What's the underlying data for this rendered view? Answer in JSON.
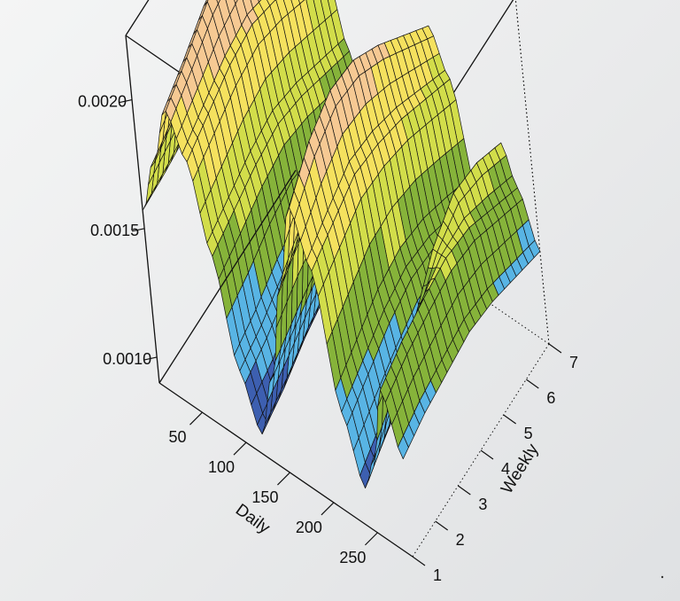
{
  "chart_data": {
    "type": "surface",
    "title": "",
    "xlabel": "Daily",
    "ylabel": "Weekly",
    "zlabel": "",
    "xlim": [
      1,
      290
    ],
    "ylim": [
      1,
      7
    ],
    "zlim": [
      0.0009,
      0.00225
    ],
    "x_ticks": [
      "50",
      "100",
      "150",
      "200",
      "250"
    ],
    "y_ticks": [
      "1",
      "2",
      "3",
      "4",
      "5",
      "6",
      "7"
    ],
    "z_ticks": [
      "0.0010",
      "0.0015",
      "0.0020"
    ],
    "grid": false,
    "surface_rows": [
      {
        "daily": 1,
        "values": [
          0.00157,
          0.00158,
          0.0016,
          0.00162,
          0.00163,
          0.00161,
          0.00158
        ]
      },
      {
        "daily": 20,
        "values": [
          0.0018,
          0.00185,
          0.00192,
          0.00198,
          0.00201,
          0.00197,
          0.0019
        ]
      },
      {
        "daily": 40,
        "values": [
          0.00205,
          0.00212,
          0.0022,
          0.00224,
          0.0022,
          0.00212,
          0.00205
        ]
      },
      {
        "daily": 60,
        "values": [
          0.0019,
          0.00195,
          0.002,
          0.00202,
          0.00198,
          0.00192,
          0.00186
        ]
      },
      {
        "daily": 80,
        "values": [
          0.00158,
          0.00162,
          0.00166,
          0.00168,
          0.00165,
          0.0016,
          0.00155
        ]
      },
      {
        "daily": 100,
        "values": [
          0.00118,
          0.00122,
          0.00128,
          0.00132,
          0.0013,
          0.00126,
          0.00122
        ]
      },
      {
        "daily": 120,
        "values": [
          0.00098,
          0.00102,
          0.00108,
          0.00112,
          0.0011,
          0.00106,
          0.00102
        ]
      },
      {
        "daily": 140,
        "values": [
          0.00125,
          0.0013,
          0.00135,
          0.00138,
          0.00136,
          0.00131,
          0.00127
        ]
      },
      {
        "daily": 160,
        "values": [
          0.00165,
          0.00172,
          0.00176,
          0.00178,
          0.00175,
          0.0017,
          0.00165
        ]
      },
      {
        "daily": 180,
        "values": [
          0.002,
          0.00212,
          0.00218,
          0.00216,
          0.00208,
          0.00198,
          0.00188
        ]
      },
      {
        "daily": 200,
        "values": [
          0.0018,
          0.00185,
          0.0019,
          0.00188,
          0.00184,
          0.00178,
          0.00172
        ]
      },
      {
        "daily": 220,
        "values": [
          0.0013,
          0.00136,
          0.00142,
          0.00145,
          0.00143,
          0.00138,
          0.00132
        ]
      },
      {
        "daily": 240,
        "values": [
          0.00105,
          0.00112,
          0.00118,
          0.00124,
          0.00125,
          0.00122,
          0.00118
        ]
      },
      {
        "daily": 255,
        "values": [
          0.0012,
          0.0013,
          0.00145,
          0.0016,
          0.00168,
          0.00166,
          0.0016
        ]
      },
      {
        "daily": 270,
        "values": [
          0.0015,
          0.00155,
          0.00158,
          0.0016,
          0.00158,
          0.00152,
          0.00146
        ]
      },
      {
        "daily": 290,
        "values": [
          0.00128,
          0.00132,
          0.00134,
          0.00136,
          0.00134,
          0.0013,
          0.00126
        ]
      }
    ],
    "colors": {
      "palette": [
        "#3d5fb0",
        "#58b4e4",
        "#86b33a",
        "#d2dd4a",
        "#f5e15e",
        "#f6c993"
      ],
      "mesh": "#111111",
      "box": "#111111"
    }
  }
}
